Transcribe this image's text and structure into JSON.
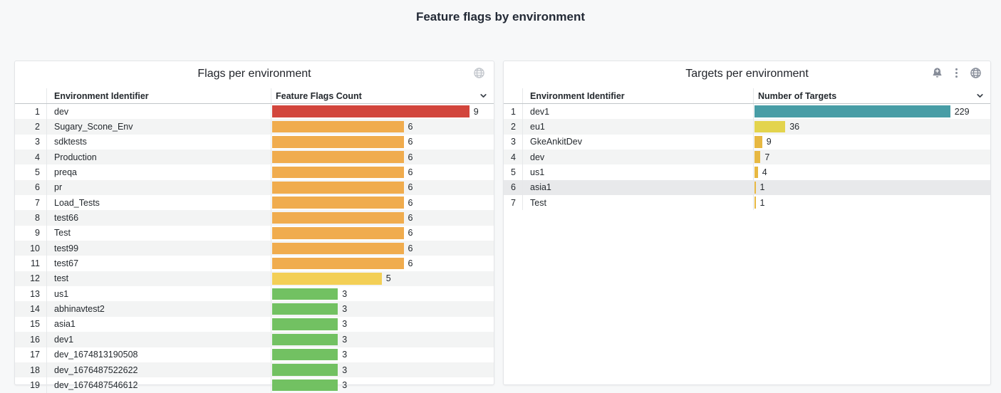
{
  "page": {
    "title": "Feature flags by environment",
    "background": "#f7f8f9"
  },
  "panels": [
    {
      "title": "Flags per environment",
      "header_icons": [
        "globe"
      ],
      "columns": {
        "name": "Environment Identifier",
        "value": "Feature Flags Count"
      },
      "max": 9,
      "rows": [
        {
          "index": 1,
          "name": "dev",
          "value": 9,
          "color": "#d2453c"
        },
        {
          "index": 2,
          "name": "Sugary_Scone_Env",
          "value": 6,
          "color": "#f0ac4e"
        },
        {
          "index": 3,
          "name": "sdktests",
          "value": 6,
          "color": "#f0ac4e"
        },
        {
          "index": 4,
          "name": "Production",
          "value": 6,
          "color": "#f0ac4e"
        },
        {
          "index": 5,
          "name": "preqa",
          "value": 6,
          "color": "#f0ac4e"
        },
        {
          "index": 6,
          "name": "pr",
          "value": 6,
          "color": "#f0ac4e"
        },
        {
          "index": 7,
          "name": "Load_Tests",
          "value": 6,
          "color": "#f0ac4e"
        },
        {
          "index": 8,
          "name": "test66",
          "value": 6,
          "color": "#f0ac4e"
        },
        {
          "index": 9,
          "name": "Test",
          "value": 6,
          "color": "#f0ac4e"
        },
        {
          "index": 10,
          "name": "test99",
          "value": 6,
          "color": "#f0ac4e"
        },
        {
          "index": 11,
          "name": "test67",
          "value": 6,
          "color": "#f0ac4e"
        },
        {
          "index": 12,
          "name": "test",
          "value": 5,
          "color": "#f3cf56"
        },
        {
          "index": 13,
          "name": "us1",
          "value": 3,
          "color": "#72c162"
        },
        {
          "index": 14,
          "name": "abhinavtest2",
          "value": 3,
          "color": "#72c162"
        },
        {
          "index": 15,
          "name": "asia1",
          "value": 3,
          "color": "#72c162"
        },
        {
          "index": 16,
          "name": "dev1",
          "value": 3,
          "color": "#72c162"
        },
        {
          "index": 17,
          "name": "dev_1674813190508",
          "value": 3,
          "color": "#72c162"
        },
        {
          "index": 18,
          "name": "dev_1676487522622",
          "value": 3,
          "color": "#72c162"
        },
        {
          "index": 19,
          "name": "dev_1676487546612",
          "value": 3,
          "color": "#72c162"
        }
      ]
    },
    {
      "title": "Targets per environment",
      "header_icons": [
        "bell-plus",
        "kebab",
        "globe"
      ],
      "columns": {
        "name": "Environment Identifier",
        "value": "Number of Targets"
      },
      "max": 229,
      "rows": [
        {
          "index": 1,
          "name": "dev1",
          "value": 229,
          "color": "#489da6"
        },
        {
          "index": 2,
          "name": "eu1",
          "value": 36,
          "color": "#e3d44d"
        },
        {
          "index": 3,
          "name": "GkeAnkitDev",
          "value": 9,
          "color": "#e7b842"
        },
        {
          "index": 4,
          "name": "dev",
          "value": 7,
          "color": "#e7b842"
        },
        {
          "index": 5,
          "name": "us1",
          "value": 4,
          "color": "#e7b842"
        },
        {
          "index": 6,
          "name": "asia1",
          "value": 1,
          "color": "#e7b842",
          "highlighted": true
        },
        {
          "index": 7,
          "name": "Test",
          "value": 1,
          "color": "#e7b842"
        }
      ]
    }
  ]
}
